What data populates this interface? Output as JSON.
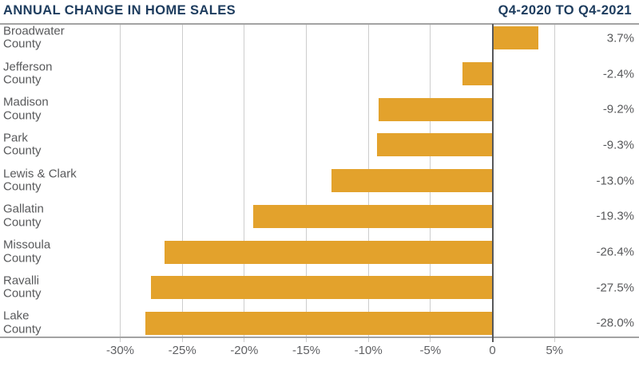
{
  "header": {
    "title": "ANNUAL CHANGE IN HOME SALES",
    "period": "Q4-2020 TO Q4-2021"
  },
  "chart_data": {
    "type": "bar",
    "orientation": "horizontal",
    "title": "ANNUAL CHANGE IN HOME SALES",
    "subtitle": "Q4-2020 TO Q4-2021",
    "categories": [
      "Broadwater",
      "Jefferson",
      "Madison",
      "Park",
      "Lewis & Clark",
      "Gallatin",
      "Missoula",
      "Ravalli",
      "Lake"
    ],
    "category_suffix": "County",
    "values": [
      3.7,
      -2.4,
      -9.2,
      -9.3,
      -13.0,
      -19.3,
      -26.4,
      -27.5,
      -28.0
    ],
    "value_labels": [
      "3.7%",
      "-2.4%",
      "-9.2%",
      "-9.3%",
      "-13.0%",
      "-19.3%",
      "-26.4%",
      "-27.5%",
      "-28.0%"
    ],
    "unit": "%",
    "x_ticks": [
      -30,
      -25,
      -20,
      -15,
      -10,
      -5,
      0,
      5
    ],
    "x_tick_labels": [
      "-30%",
      "-25%",
      "-20%",
      "-15%",
      "-10%",
      "-5%",
      "0",
      "5%"
    ],
    "xlim": [
      -39.5,
      11.8
    ],
    "grid": true,
    "legend": "none",
    "value_label_position": "right-margin",
    "category_label_position": "left-margin"
  },
  "colors": {
    "navy": "#1d3c5e",
    "bar": "#e3a22c",
    "text_gray": "#58595b",
    "tick_gray": "#606164",
    "gridline": "#cdcdcd",
    "axis_line": "#a3a3a3",
    "zero_line": "#57585a"
  }
}
